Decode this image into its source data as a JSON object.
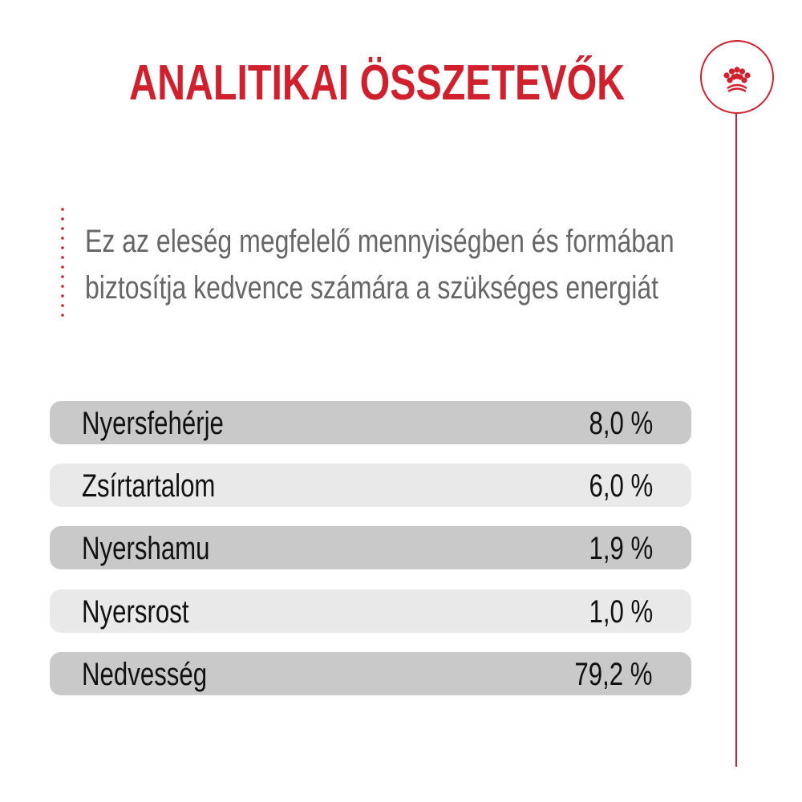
{
  "title": "ANALITIKAI ÖSSZETEVŐK",
  "logo_icon": "crown-icon",
  "intro": [
    "Ez az eleség megfelelő mennyiségben és formában",
    "biztosítja kedvence számára a szükséges energiát"
  ],
  "rows": [
    {
      "label": "Nyersfehérje",
      "value": "8,0 %"
    },
    {
      "label": "Zsírtartalom",
      "value": "6,0 %"
    },
    {
      "label": "Nyershamu",
      "value": "1,9 %"
    },
    {
      "label": "Nyersrost",
      "value": "1,0 %"
    },
    {
      "label": "Nedvesség",
      "value": "79,2 %"
    }
  ],
  "colors": {
    "accent": "#d0202e",
    "row_dark": "#c9c9ca",
    "row_light": "#e9e9e9",
    "text_gray": "#666666"
  }
}
